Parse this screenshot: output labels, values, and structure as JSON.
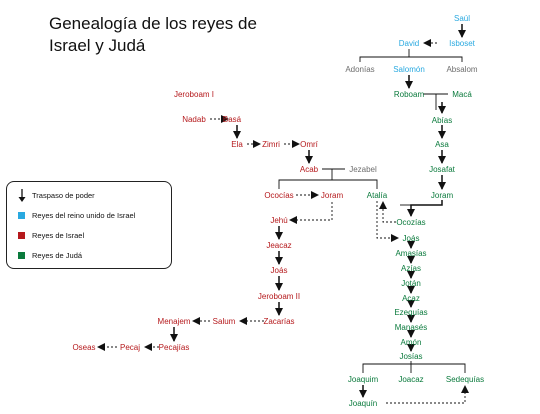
{
  "title": "Genealogía de los reyes de Israel y Judá",
  "colors": {
    "united": "#29a9e0",
    "israel": "#b5191c",
    "juda": "#0a7a3c",
    "other": "#6d6d6d"
  },
  "legend": {
    "transfer": "Traspaso de poder",
    "united": "Reyes del reino unido de Israel",
    "israel": "Reyes de Israel",
    "juda": "Reyes de Judá"
  },
  "nodes": [
    {
      "id": "saul",
      "label": "Saúl",
      "kind": "united"
    },
    {
      "id": "david",
      "label": "David",
      "kind": "united"
    },
    {
      "id": "isboset",
      "label": "Isboset",
      "kind": "united"
    },
    {
      "id": "adonias",
      "label": "Adonías",
      "kind": "other"
    },
    {
      "id": "salomon",
      "label": "Salomón",
      "kind": "united"
    },
    {
      "id": "absalom",
      "label": "Absalom",
      "kind": "other"
    },
    {
      "id": "roboam",
      "label": "Roboam",
      "kind": "juda"
    },
    {
      "id": "maca",
      "label": "Macá",
      "kind": "juda"
    },
    {
      "id": "abias",
      "label": "Abías",
      "kind": "juda"
    },
    {
      "id": "asa",
      "label": "Asa",
      "kind": "juda"
    },
    {
      "id": "josafat",
      "label": "Josafat",
      "kind": "juda"
    },
    {
      "id": "joram_j",
      "label": "Joram",
      "kind": "juda"
    },
    {
      "id": "ococias_j",
      "label": "Ocozías",
      "kind": "juda"
    },
    {
      "id": "atalia",
      "label": "Atalía",
      "kind": "juda"
    },
    {
      "id": "joas_j",
      "label": "Joás",
      "kind": "juda"
    },
    {
      "id": "amasias",
      "label": "Amasías",
      "kind": "juda"
    },
    {
      "id": "azias",
      "label": "Azías",
      "kind": "juda"
    },
    {
      "id": "jotan",
      "label": "Jotán",
      "kind": "juda"
    },
    {
      "id": "acaz",
      "label": "Acaz",
      "kind": "juda"
    },
    {
      "id": "ezequias",
      "label": "Ezequías",
      "kind": "juda"
    },
    {
      "id": "manases",
      "label": "Manasés",
      "kind": "juda"
    },
    {
      "id": "amon",
      "label": "Amón",
      "kind": "juda"
    },
    {
      "id": "josias",
      "label": "Josías",
      "kind": "juda"
    },
    {
      "id": "joaquim",
      "label": "Joaquim",
      "kind": "juda"
    },
    {
      "id": "joacaz",
      "label": "Joacaz",
      "kind": "juda"
    },
    {
      "id": "sedequias",
      "label": "Sedequías",
      "kind": "juda"
    },
    {
      "id": "joaquin",
      "label": "Joaquín",
      "kind": "juda"
    },
    {
      "id": "jeroboam",
      "label": "Jeroboam I",
      "kind": "israel"
    },
    {
      "id": "nadab",
      "label": "Nadab",
      "kind": "israel"
    },
    {
      "id": "basa",
      "label": "Basá",
      "kind": "israel"
    },
    {
      "id": "ela",
      "label": "Ela",
      "kind": "israel"
    },
    {
      "id": "zimri",
      "label": "Zimri",
      "kind": "israel"
    },
    {
      "id": "omri",
      "label": "Omrí",
      "kind": "israel"
    },
    {
      "id": "acab",
      "label": "Acab",
      "kind": "israel"
    },
    {
      "id": "jezabel",
      "label": "Jezabel",
      "kind": "other"
    },
    {
      "id": "ococias_i",
      "label": "Ococías",
      "kind": "israel"
    },
    {
      "id": "joram_i",
      "label": "Joram",
      "kind": "israel"
    },
    {
      "id": "jehu",
      "label": "Jehú",
      "kind": "israel"
    },
    {
      "id": "jeacaz",
      "label": "Jeacaz",
      "kind": "israel"
    },
    {
      "id": "joas_i",
      "label": "Joás",
      "kind": "israel"
    },
    {
      "id": "jeroboam2",
      "label": "Jeroboam II",
      "kind": "israel"
    },
    {
      "id": "zacarias",
      "label": "Zacarías",
      "kind": "israel"
    },
    {
      "id": "salum",
      "label": "Salum",
      "kind": "israel"
    },
    {
      "id": "menajem",
      "label": "Menajem",
      "kind": "israel"
    },
    {
      "id": "pecajias",
      "label": "Pecajías",
      "kind": "israel"
    },
    {
      "id": "pecaj",
      "label": "Pecaj",
      "kind": "israel"
    },
    {
      "id": "oseas",
      "label": "Oseas",
      "kind": "israel"
    }
  ]
}
